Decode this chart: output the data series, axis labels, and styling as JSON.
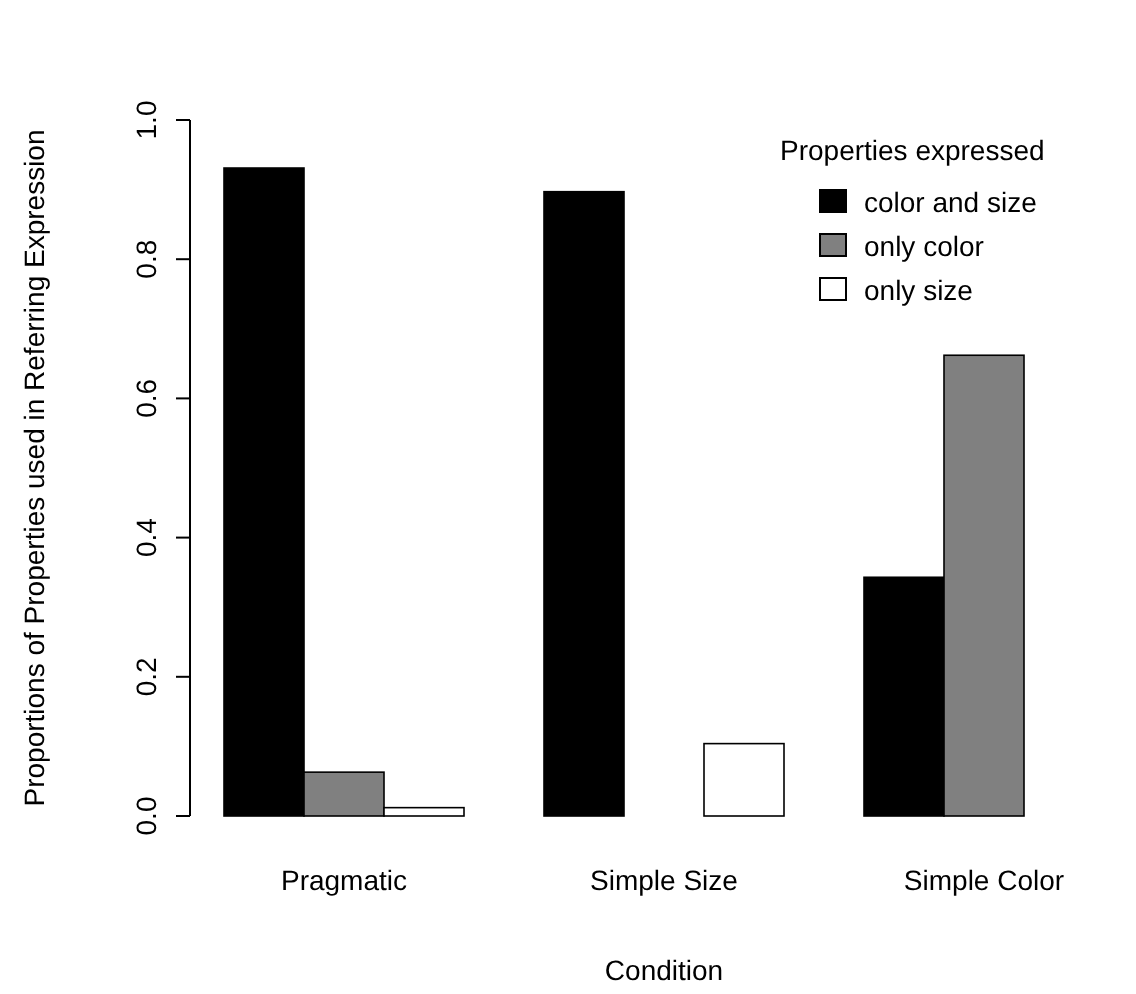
{
  "chart_data": {
    "type": "bar",
    "xlabel": "Condition",
    "ylabel": "Proportions of Properties used in Referring Expression",
    "legend_title": "Properties expressed",
    "legend": "top right",
    "categories": [
      "Pragmatic",
      "Simple Size",
      "Simple Color"
    ],
    "series": [
      {
        "name": "color and size",
        "color": "#000000",
        "values": [
          0.931,
          0.897,
          0.343
        ]
      },
      {
        "name": "only color",
        "color": "#808080",
        "values": [
          0.063,
          0,
          0.662
        ]
      },
      {
        "name": "only size",
        "color": "#ffffff",
        "values": [
          0.012,
          0.104,
          0
        ]
      }
    ],
    "ylim": [
      0,
      1
    ],
    "yticks": [
      {
        "value": 0,
        "label": "0.0"
      },
      {
        "value": 0.2,
        "label": "0.2"
      },
      {
        "value": 0.4,
        "label": "0.4"
      },
      {
        "value": 0.6,
        "label": "0.6"
      },
      {
        "value": 0.8,
        "label": "0.8"
      },
      {
        "value": 1,
        "label": "1.0"
      }
    ],
    "grid": false
  }
}
